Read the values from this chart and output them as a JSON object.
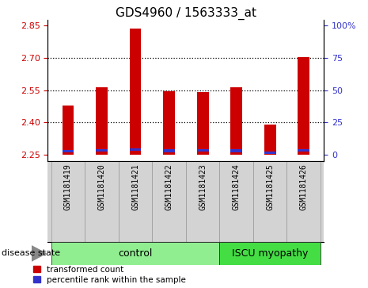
{
  "title": "GDS4960 / 1563333_at",
  "samples": [
    "GSM1181419",
    "GSM1181420",
    "GSM1181421",
    "GSM1181422",
    "GSM1181423",
    "GSM1181424",
    "GSM1181425",
    "GSM1181426"
  ],
  "red_values": [
    2.48,
    2.565,
    2.835,
    2.545,
    2.54,
    2.565,
    2.39,
    2.705
  ],
  "blue_bottom": [
    2.261,
    2.265,
    2.268,
    2.263,
    2.265,
    2.263,
    2.253,
    2.265
  ],
  "blue_height": 0.013,
  "y_base": 2.25,
  "ylim_min": 2.22,
  "ylim_max": 2.875,
  "yticks_left": [
    2.25,
    2.4,
    2.55,
    2.7,
    2.85
  ],
  "yticks_right": [
    0,
    25,
    50,
    75,
    100
  ],
  "y_right_min": 2.25,
  "y_right_max": 2.85,
  "bar_color_red": "#CC0000",
  "bar_color_blue": "#3333CC",
  "bar_width": 0.35,
  "plot_bg": "#FFFFFF",
  "sample_bg": "#D3D3D3",
  "ctrl_color": "#90EE90",
  "iscu_color": "#44DD44",
  "ctrl_label": "control",
  "iscu_label": "ISCU myopathy",
  "ctrl_count": 5,
  "iscu_count": 3,
  "title_fontsize": 11,
  "tick_fontsize": 8,
  "sample_fontsize": 7,
  "group_fontsize": 9,
  "disease_label": "disease state",
  "legend_red": "transformed count",
  "legend_blue": "percentile rank within the sample",
  "dotted_lines": [
    2.4,
    2.55,
    2.7
  ],
  "xlim_min": -0.6,
  "xlim_max": 7.6
}
